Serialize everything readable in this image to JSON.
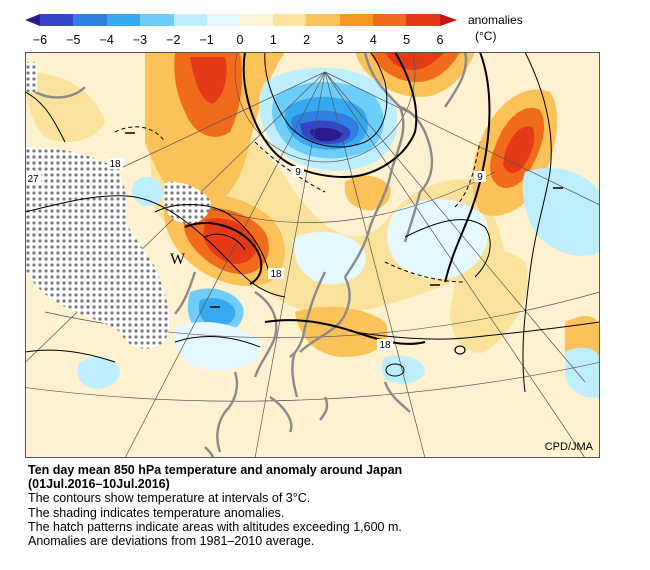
{
  "colorbar": {
    "title": "anomalies",
    "unit": "(°C)",
    "ticks": [
      "−6",
      "−5",
      "−4",
      "−3",
      "−2",
      "−1",
      "0",
      "1",
      "2",
      "3",
      "4",
      "5",
      "6"
    ],
    "colors": [
      "#2a1a8f",
      "#3346c8",
      "#2f7fe0",
      "#35aaf0",
      "#7fd2fb",
      "#c8f0fd",
      "#ffffff",
      "#fbe9b6",
      "#fbd07a",
      "#f9a433",
      "#f3761f",
      "#e53a17",
      "#c81112"
    ]
  },
  "map": {
    "credit": "CPD/JMA",
    "marker": "W",
    "contour_labels": [
      "18",
      "27",
      "9",
      "9",
      "18",
      "18"
    ]
  },
  "caption": {
    "title": "Ten day mean 850 hPa temperature and anomaly around Japan",
    "period": "(01Jul.2016–10Jul.2016)",
    "line1": "The contours show temperature at intervals of 3°C.",
    "line2": "The shading indicates temperature anomalies.",
    "line3": "The hatch patterns indicate areas with altitudes exceeding 1,600 m.",
    "line4": "Anomalies are deviations from 1981–2010 average."
  }
}
